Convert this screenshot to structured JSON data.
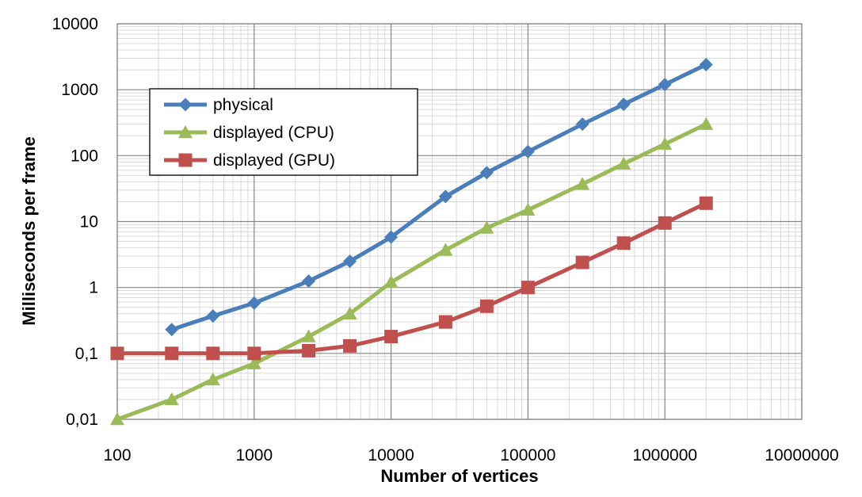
{
  "chart_data": {
    "type": "line",
    "title": "",
    "xlabel": "Number of vertices",
    "ylabel": "Milliseconds per frame",
    "x_scale": "log",
    "y_scale": "log",
    "xlim": [
      100,
      10000000
    ],
    "ylim": [
      0.01,
      10000
    ],
    "grid": true,
    "legend_position": "top-left",
    "x_tick_labels": [
      "100",
      "1000",
      "10000",
      "100000",
      "1000000",
      "10000000"
    ],
    "y_tick_labels": [
      "0,01",
      "0,1",
      "1",
      "10",
      "100",
      "1000",
      "10000"
    ],
    "series": [
      {
        "name": "physical",
        "color": "#4A7EBB",
        "marker": "diamond",
        "x": [
          250,
          500,
          1000,
          2500,
          5000,
          10000,
          25000,
          50000,
          100000,
          250000,
          500000,
          1000000,
          2000000
        ],
        "values": [
          0.23,
          0.37,
          0.58,
          1.25,
          2.5,
          5.8,
          24,
          55,
          115,
          300,
          600,
          1200,
          2400
        ]
      },
      {
        "name": "displayed (CPU)",
        "color": "#9BBB59",
        "marker": "triangle",
        "x": [
          100,
          250,
          500,
          1000,
          2500,
          5000,
          10000,
          25000,
          50000,
          100000,
          250000,
          500000,
          1000000,
          2000000
        ],
        "values": [
          0.01,
          0.02,
          0.04,
          0.07,
          0.18,
          0.4,
          1.2,
          3.7,
          8,
          15,
          37,
          75,
          150,
          300
        ]
      },
      {
        "name": "displayed (GPU)",
        "color": "#C0504D",
        "marker": "square",
        "x": [
          100,
          250,
          500,
          1000,
          2500,
          5000,
          10000,
          25000,
          50000,
          100000,
          250000,
          500000,
          1000000,
          2000000
        ],
        "values": [
          0.1,
          0.1,
          0.1,
          0.1,
          0.11,
          0.13,
          0.18,
          0.3,
          0.52,
          1.0,
          2.4,
          4.7,
          9.5,
          19
        ]
      }
    ]
  }
}
